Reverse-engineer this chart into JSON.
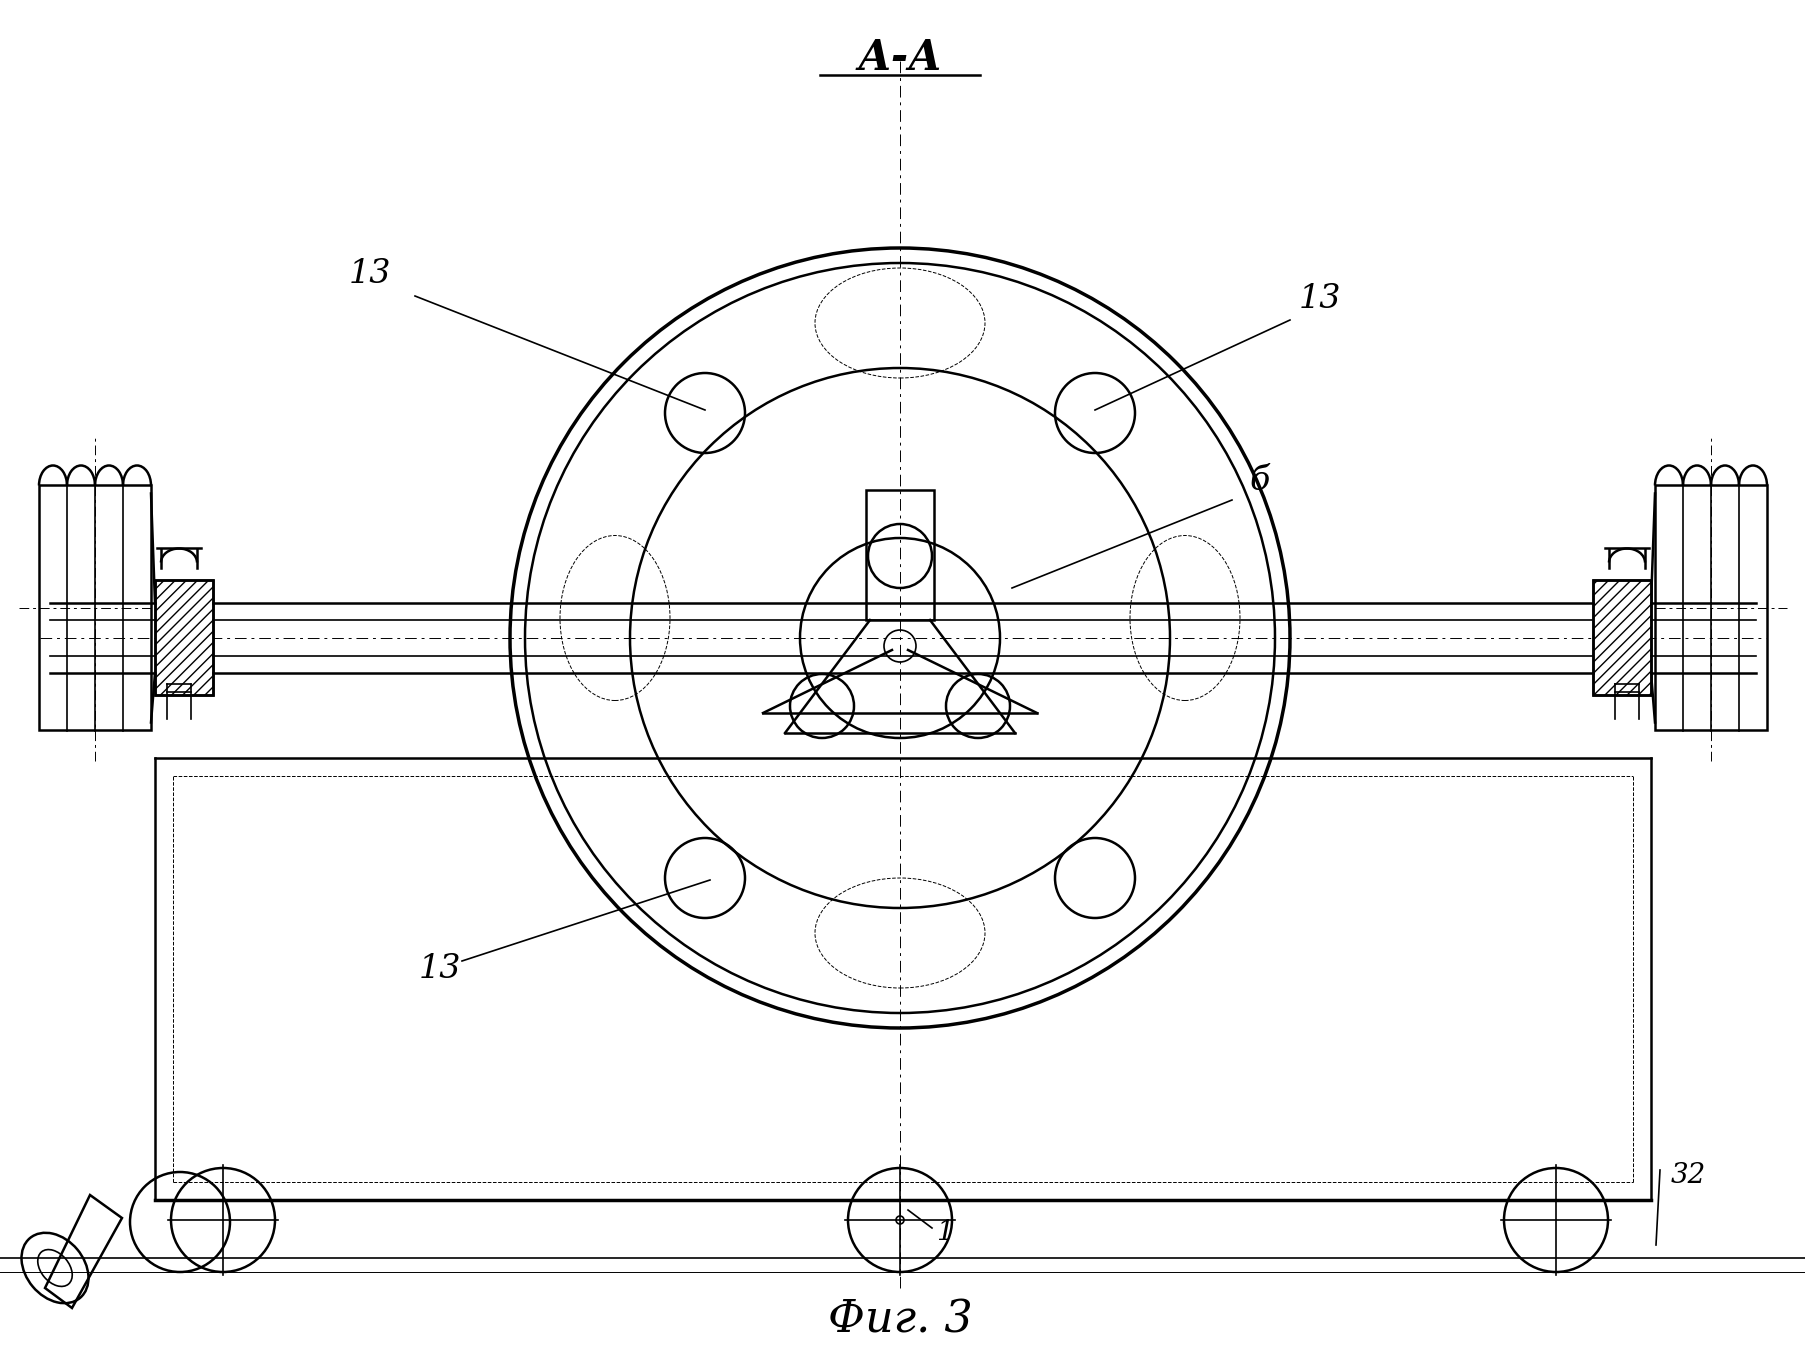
{
  "bg_color": "#ffffff",
  "line_color": "#000000",
  "figsize": [
    18.06,
    13.68
  ],
  "dpi": 100,
  "title_aa": "А-А",
  "label_fig": "Фиг. 3",
  "labels": {
    "13_topleft": "13",
    "13_topright": "13",
    "13_bottom": "13",
    "6": "б",
    "1": "1",
    "32": "32"
  }
}
